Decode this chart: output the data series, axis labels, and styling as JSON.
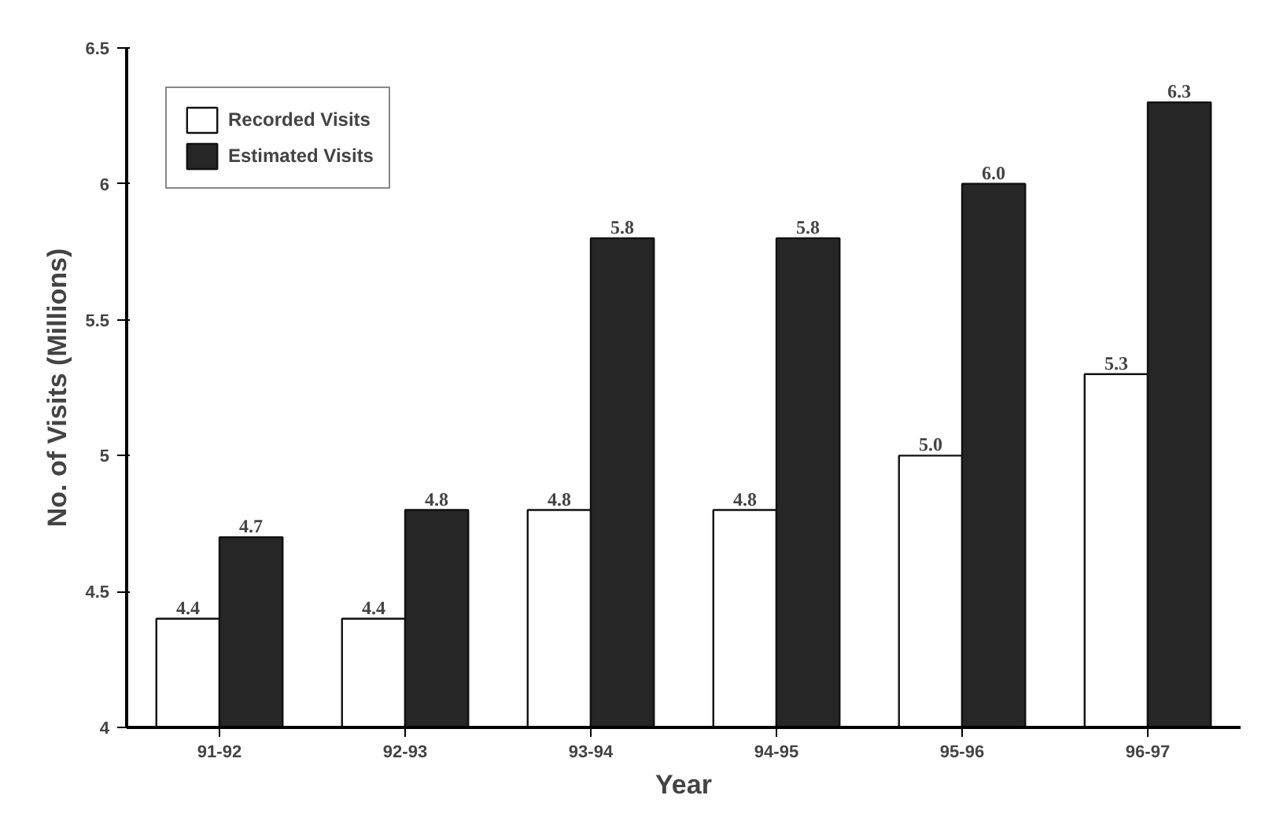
{
  "chart_data": {
    "type": "bar",
    "xlabel": "Year",
    "ylabel": "No. of Visits (Millions)",
    "categories": [
      "91-92",
      "92-93",
      "93-94",
      "94-95",
      "95-96",
      "96-97"
    ],
    "series": [
      {
        "name": "Recorded Visits",
        "color": "#ffffff",
        "values": [
          4.4,
          4.4,
          4.8,
          4.8,
          5.0,
          5.3
        ],
        "value_labels": [
          "4.4",
          "4.4",
          "4.8",
          "4.8",
          "5.0",
          "5.3"
        ]
      },
      {
        "name": "Estimated Visits",
        "color": "#262626",
        "values": [
          4.7,
          4.8,
          5.8,
          5.8,
          6.0,
          6.3
        ],
        "value_labels": [
          "4.7",
          "4.8",
          "5.8",
          "5.8",
          "6.0",
          "6.3"
        ]
      }
    ],
    "ylim": [
      4,
      6.5
    ],
    "yticks": [
      4,
      4.5,
      5,
      5.5,
      6,
      6.5
    ],
    "grid": false,
    "legend": "top left"
  }
}
